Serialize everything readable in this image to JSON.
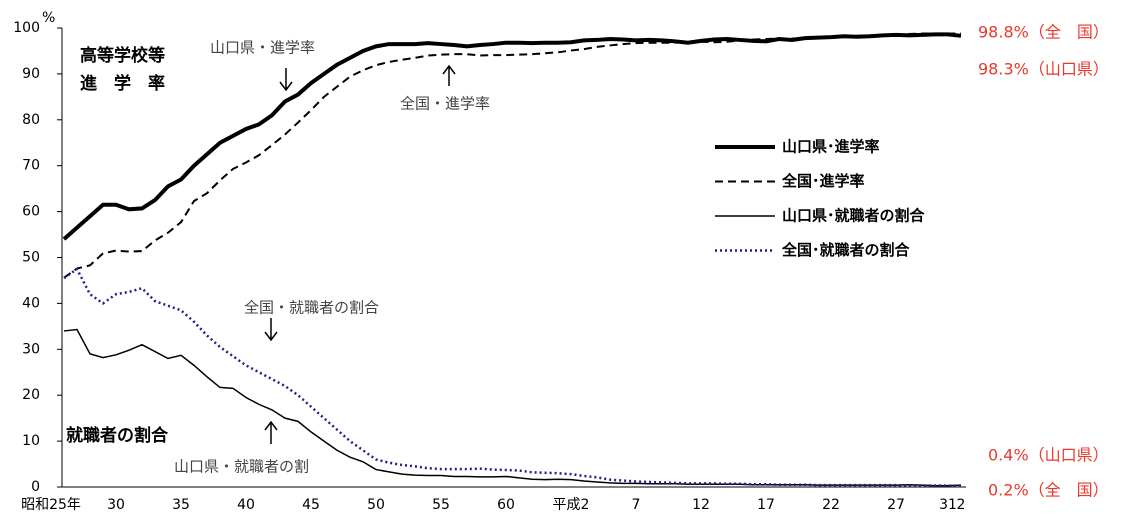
{
  "chart_data": {
    "type": "line",
    "y_unit": "%",
    "categories": [
      "昭和25年",
      null,
      null,
      null,
      null,
      "30",
      null,
      null,
      null,
      null,
      "35",
      null,
      null,
      null,
      null,
      "40",
      null,
      null,
      null,
      null,
      "45",
      null,
      null,
      null,
      null,
      "50",
      null,
      null,
      null,
      null,
      "55",
      null,
      null,
      null,
      null,
      "60",
      null,
      null,
      null,
      null,
      "平成2",
      null,
      null,
      null,
      null,
      "7",
      null,
      null,
      null,
      null,
      "12",
      null,
      null,
      null,
      null,
      "17",
      null,
      null,
      null,
      null,
      "22",
      null,
      null,
      null,
      null,
      "27",
      null,
      null,
      null,
      "31",
      "2"
    ],
    "series": [
      {
        "name": "山口県･進学率",
        "color": "#000000",
        "dash": "solid",
        "values": [
          null,
          54,
          56.5,
          59,
          61.5,
          61.5,
          60.5,
          60.7,
          62.5,
          65.5,
          67,
          70,
          72.5,
          75,
          76.5,
          78,
          79,
          81,
          84,
          85.5,
          88,
          90,
          92,
          93.5,
          95,
          96,
          96.5,
          96.5,
          96.5,
          96.7,
          96.5,
          96.3,
          96,
          96.3,
          96.5,
          96.8,
          96.8,
          96.7,
          96.8,
          96.8,
          96.9,
          97.3,
          97.4,
          97.6,
          97.5,
          97.3,
          97.4,
          97.3,
          97.1,
          96.8,
          97.2,
          97.5,
          97.6,
          97.4,
          97.2,
          97.1,
          97.6,
          97.4,
          97.8,
          97.9,
          98,
          98.2,
          98.1,
          98.2,
          98.4,
          98.5,
          98.4,
          98.5,
          98.6,
          98.6,
          98.3
        ]
      },
      {
        "name": "全国･進学率",
        "color": "#000000",
        "dash": "dashed",
        "values": [
          null,
          45.6,
          47.6,
          48.3,
          50.9,
          51.5,
          51.3,
          51.4,
          53.7,
          55.4,
          57.7,
          62.3,
          64,
          66.8,
          69.3,
          70.7,
          72.3,
          74.5,
          76.8,
          79.4,
          82.1,
          85,
          87.2,
          89.4,
          90.8,
          91.9,
          92.6,
          93.1,
          93.5,
          94,
          94.2,
          94.3,
          94.3,
          94,
          94.1,
          94.1,
          94.2,
          94.3,
          94.5,
          94.7,
          95.1,
          95.4,
          95.9,
          96.2,
          96.5,
          96.7,
          96.8,
          96.8,
          96.8,
          96.9,
          97,
          96.9,
          97,
          97.3,
          97.5,
          97.6,
          97.7,
          97.7,
          97.8,
          97.9,
          98,
          98.2,
          98.3,
          98.4,
          98.4,
          98.5,
          98.7,
          98.8,
          98.8,
          98.8,
          98.8
        ]
      },
      {
        "name": "山口県･就職者の割合",
        "color": "#000000",
        "dash": "solid",
        "values": [
          null,
          34,
          34.3,
          29,
          28.2,
          28.8,
          29.8,
          31,
          29.5,
          28,
          28.7,
          26.5,
          24,
          21.7,
          21.5,
          19.5,
          18,
          16.8,
          15,
          14.3,
          12,
          10,
          8,
          6.5,
          5.5,
          3.8,
          3.3,
          2.8,
          2.6,
          2.5,
          2.5,
          2.3,
          2.3,
          2.2,
          2.2,
          2.3,
          2,
          1.7,
          1.6,
          1.7,
          1.6,
          1.3,
          1.1,
          0.9,
          0.8,
          0.8,
          0.7,
          0.7,
          0.7,
          0.6,
          0.6,
          0.6,
          0.6,
          0.6,
          0.5,
          0.5,
          0.5,
          0.5,
          0.5,
          0.4,
          0.4,
          0.4,
          0.4,
          0.4,
          0.4,
          0.4,
          0.5,
          0.4,
          0.3,
          0.3,
          0.4
        ]
      },
      {
        "name": "全国･就職者の割合",
        "color": "#1f1f8f",
        "dash": "dotted",
        "values": [
          null,
          45.5,
          47.5,
          42,
          40,
          42,
          42.5,
          43.3,
          40.5,
          39.5,
          38.5,
          36,
          33,
          30.5,
          28.5,
          26.5,
          25,
          23.5,
          22,
          20,
          17.5,
          15,
          12.5,
          10,
          8,
          6,
          5.3,
          4.8,
          4.5,
          4.1,
          3.9,
          3.9,
          3.9,
          4,
          3.8,
          3.7,
          3.6,
          3.2,
          3.1,
          3,
          2.8,
          2.4,
          2.1,
          1.6,
          1.4,
          1.2,
          1.1,
          1,
          0.9,
          0.8,
          0.8,
          0.8,
          0.7,
          0.7,
          0.6,
          0.6,
          0.5,
          0.5,
          0.5,
          0.4,
          0.4,
          0.4,
          0.4,
          0.4,
          0.4,
          0.4,
          0.3,
          0.3,
          0.3,
          0.3,
          0.2
        ]
      }
    ],
    "ylim": [
      0,
      100
    ],
    "yticks": [
      0,
      10,
      20,
      30,
      40,
      50,
      60,
      70,
      80,
      90,
      100
    ],
    "annotations": [
      "高等学校等",
      "進　学　率",
      "山口県・進学率",
      "全国・進学率",
      "全国・就職者の割合",
      "就職者の割合",
      "山口県・就職者の割"
    ],
    "end_labels": [
      "98.8%（全　国）",
      "98.3%（山口県）",
      "0.4%（山口県）",
      "0.2%（全　国）"
    ],
    "end_label_color": "#e8392f",
    "legend": "right"
  }
}
